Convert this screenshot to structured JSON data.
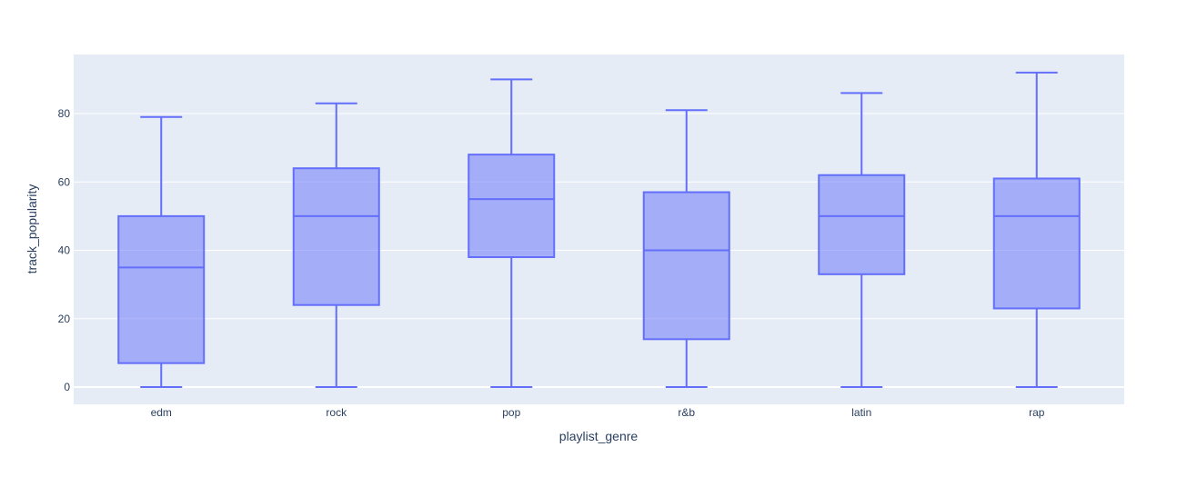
{
  "chart_data": {
    "type": "box",
    "xlabel": "playlist_genre",
    "ylabel": "track_popularity",
    "categories": [
      "edm",
      "rock",
      "pop",
      "r&b",
      "latin",
      "rap"
    ],
    "boxes": [
      {
        "category": "edm",
        "min": 0,
        "q1": 7,
        "median": 35,
        "q3": 50,
        "max": 79
      },
      {
        "category": "rock",
        "min": 0,
        "q1": 24,
        "median": 50,
        "q3": 64,
        "max": 83
      },
      {
        "category": "pop",
        "min": 0,
        "q1": 38,
        "median": 55,
        "q3": 68,
        "max": 90
      },
      {
        "category": "r&b",
        "min": 0,
        "q1": 14,
        "median": 40,
        "q3": 57,
        "max": 81
      },
      {
        "category": "latin",
        "min": 0,
        "q1": 33,
        "median": 50,
        "q3": 62,
        "max": 86
      },
      {
        "category": "rap",
        "min": 0,
        "q1": 23,
        "median": 50,
        "q3": 61,
        "max": 92
      }
    ],
    "yticks": [
      0,
      20,
      40,
      60,
      80
    ],
    "ylim": [
      -5,
      97
    ],
    "grid": true,
    "colors": {
      "plot_background": "#E5ECF6",
      "grid": "#ffffff",
      "box_line": "#636EFA",
      "box_fill": "rgba(99,110,250,0.5)"
    }
  }
}
